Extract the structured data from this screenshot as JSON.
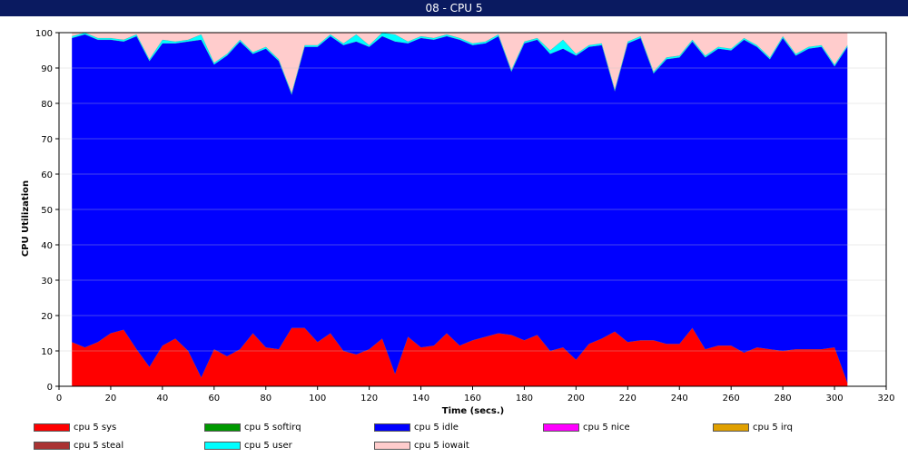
{
  "window": {
    "title": "08  -  CPU 5"
  },
  "chart_data": {
    "type": "area",
    "stacked": true,
    "title": "",
    "xlabel": "Time (secs.)",
    "ylabel": "CPU Utilization",
    "xlim": [
      0,
      320
    ],
    "ylim": [
      0,
      100
    ],
    "xticks": [
      0,
      20,
      40,
      60,
      80,
      100,
      120,
      140,
      160,
      180,
      200,
      220,
      240,
      260,
      280,
      300,
      320
    ],
    "yticks": [
      0,
      10,
      20,
      30,
      40,
      50,
      60,
      70,
      80,
      90,
      100
    ],
    "grid": "horizontal",
    "legend_position": "bottom",
    "x": [
      5,
      10,
      15,
      20,
      25,
      30,
      35,
      40,
      45,
      50,
      55,
      60,
      65,
      70,
      75,
      80,
      85,
      90,
      95,
      100,
      105,
      110,
      115,
      120,
      125,
      130,
      135,
      140,
      145,
      150,
      155,
      160,
      165,
      170,
      175,
      180,
      185,
      190,
      195,
      200,
      205,
      210,
      215,
      220,
      225,
      230,
      235,
      240,
      245,
      250,
      255,
      260,
      265,
      270,
      275,
      280,
      285,
      290,
      295,
      300,
      305
    ],
    "series": [
      {
        "name": "cpu 5 sys",
        "color": "#ff0000",
        "values": [
          12.5,
          11,
          12.5,
          15,
          16,
          10.5,
          5.5,
          11.5,
          13.5,
          10,
          2.5,
          10.5,
          8.5,
          10.5,
          15,
          11,
          10.5,
          16.5,
          16.5,
          12.5,
          15,
          10,
          9,
          10.5,
          13.5,
          3.5,
          14,
          11,
          11.5,
          15,
          11.5,
          13,
          14,
          15,
          14.5,
          13,
          14.5,
          10,
          11,
          7.5,
          12,
          13.5,
          15.5,
          12.5,
          13,
          13,
          12,
          12,
          16.5,
          10.5,
          11.5,
          11.5,
          9.5,
          11,
          10.5,
          10,
          10.5,
          10.5,
          10.5,
          11,
          1
        ]
      },
      {
        "name": "cpu 5 softirq",
        "color": "#009900",
        "values": [
          0,
          0,
          0,
          0,
          0,
          0,
          0,
          0,
          0,
          0,
          0,
          0,
          0,
          0,
          0,
          0,
          0,
          0,
          0,
          0,
          0,
          0,
          0,
          0,
          0,
          0,
          0,
          0,
          0,
          0,
          0,
          0,
          0,
          0,
          0,
          0,
          0,
          0,
          0,
          0,
          0,
          0,
          0,
          0,
          0,
          0,
          0,
          0,
          0,
          0,
          0,
          0,
          0,
          0,
          0,
          0,
          0,
          0,
          0,
          0,
          0
        ]
      },
      {
        "name": "cpu 5 idle",
        "color": "#0000ff",
        "values": [
          86,
          88.5,
          85.5,
          83,
          81.5,
          88.5,
          86.5,
          85.5,
          83.5,
          87.5,
          95.5,
          80.5,
          85,
          87,
          79,
          84.5,
          81.5,
          66,
          79.5,
          83.5,
          84,
          86.5,
          88.5,
          85.5,
          85.5,
          94,
          83,
          87.5,
          86.5,
          84,
          86.5,
          83.5,
          83,
          84,
          74.5,
          84,
          83.5,
          84,
          84.5,
          86,
          84,
          83,
          68,
          84.5,
          85.5,
          75.5,
          80.5,
          81,
          81,
          82.5,
          84,
          83.5,
          88.5,
          85,
          82,
          88.5,
          83,
          85,
          85.5,
          79.5,
          95
        ]
      },
      {
        "name": "cpu 5 nice",
        "color": "#ff00ff",
        "values": [
          0,
          0,
          0,
          0,
          0,
          0,
          0,
          0,
          0,
          0,
          0,
          0,
          0,
          0,
          0,
          0,
          0,
          0,
          0,
          0,
          0,
          0,
          0,
          0,
          0,
          0,
          0,
          0,
          0,
          0,
          0,
          0,
          0,
          0,
          0,
          0,
          0,
          0,
          0,
          0,
          0,
          0,
          0,
          0,
          0,
          0,
          0,
          0,
          0,
          0,
          0,
          0,
          0,
          0,
          0,
          0,
          0,
          0,
          0,
          0,
          0
        ]
      },
      {
        "name": "cpu 5 irq",
        "color": "#e0a000",
        "values": [
          0,
          0,
          0,
          0,
          0,
          0,
          0,
          0,
          0,
          0,
          0,
          0,
          0,
          0,
          0,
          0,
          0,
          0,
          0,
          0,
          0,
          0,
          0,
          0,
          0,
          0,
          0,
          0,
          0,
          0,
          0,
          0,
          0,
          0,
          0,
          0,
          0,
          0,
          0,
          0,
          0,
          0,
          0,
          0,
          0,
          0,
          0,
          0,
          0,
          0,
          0,
          0,
          0,
          0,
          0,
          0,
          0,
          0,
          0,
          0,
          0
        ]
      },
      {
        "name": "cpu 5 steal",
        "color": "#aa3333",
        "values": [
          0,
          0,
          0,
          0,
          0,
          0,
          0,
          0,
          0,
          0,
          0,
          0,
          0,
          0,
          0,
          0,
          0,
          0,
          0,
          0,
          0,
          0,
          0,
          0,
          0,
          0,
          0,
          0,
          0,
          0,
          0,
          0,
          0,
          0,
          0,
          0,
          0,
          0,
          0,
          0,
          0,
          0,
          0,
          0,
          0,
          0,
          0,
          0,
          0,
          0,
          0,
          0,
          0,
          0,
          0,
          0,
          0,
          0,
          0,
          0,
          0
        ]
      },
      {
        "name": "cpu 5 user",
        "color": "#00ffff",
        "values": [
          0.5,
          0.5,
          0.5,
          0.5,
          0.5,
          0.5,
          0.5,
          1,
          0.5,
          0.5,
          1.5,
          0.5,
          0.5,
          0.5,
          0.5,
          0.5,
          0.5,
          0.5,
          0.5,
          0.5,
          0.5,
          0.5,
          2,
          0.5,
          1,
          2,
          0.5,
          0.5,
          0.5,
          0.5,
          0.5,
          0.5,
          0.5,
          0.5,
          0.5,
          0.5,
          0.5,
          1,
          2.5,
          0.5,
          0.5,
          0.5,
          0.5,
          0.5,
          0.5,
          0.5,
          0.5,
          0.5,
          0.5,
          0.5,
          0.5,
          0.5,
          0.5,
          0.5,
          0.5,
          0.5,
          0.5,
          0.5,
          0.5,
          0.5,
          0.5
        ]
      },
      {
        "name": "cpu 5 iowait",
        "color": "#ffcccc",
        "values": [
          1,
          0,
          1.5,
          1.5,
          2,
          0.5,
          7.5,
          2,
          2.5,
          2,
          0.5,
          8.5,
          6,
          2,
          5.5,
          4,
          7.5,
          17,
          3.5,
          3.5,
          0.5,
          3,
          0.5,
          3.5,
          0,
          0.5,
          2.5,
          1,
          1.5,
          0.5,
          1.5,
          3,
          2.5,
          0.5,
          10.5,
          2.5,
          1.5,
          5,
          2,
          6,
          3.5,
          3,
          16,
          2.5,
          1,
          11,
          7,
          6.5,
          2,
          6.5,
          4,
          4.5,
          1.5,
          3.5,
          7,
          1,
          6,
          4,
          3.5,
          9,
          3.5
        ]
      }
    ]
  }
}
